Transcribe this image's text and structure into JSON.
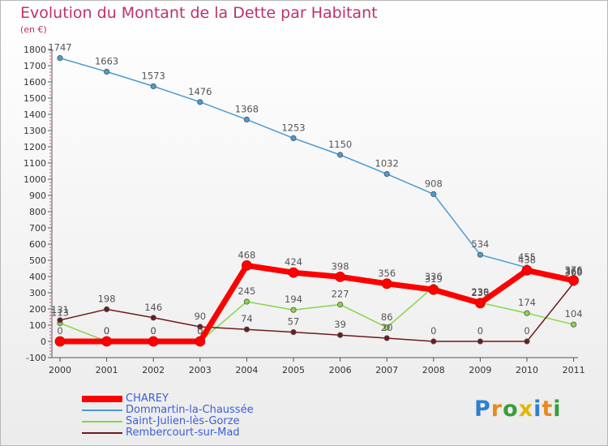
{
  "chart_data": {
    "type": "line",
    "title": "Evolution du Montant de la Dette par Habitant",
    "subtitle": "(en €)",
    "x": [
      "2000",
      "2001",
      "2002",
      "2003",
      "2004",
      "2005",
      "2006",
      "2007",
      "2008",
      "2009",
      "2010",
      "2011"
    ],
    "ylim": [
      -100,
      1800
    ],
    "yticks": [
      -100,
      0,
      100,
      200,
      300,
      400,
      500,
      600,
      700,
      800,
      900,
      1000,
      1100,
      1200,
      1300,
      1400,
      1500,
      1600,
      1700,
      1800
    ],
    "grid": false,
    "legend_position": "bottom-left",
    "series": [
      {
        "name": "CHAREY",
        "color": "#ff0000",
        "values": [
          0,
          0,
          0,
          0,
          468,
          424,
          398,
          356,
          319,
          236,
          438,
          376
        ],
        "labels": [
          "0",
          "0",
          "0",
          "0",
          "468",
          "424",
          "398",
          "356",
          "319",
          "236",
          "438",
          "376"
        ]
      },
      {
        "name": "Dommartin-la-Chaussée",
        "color": "#4a9ad4",
        "values": [
          1747,
          1663,
          1573,
          1476,
          1368,
          1253,
          1150,
          1032,
          908,
          534,
          455,
          368
        ],
        "labels": [
          "1747",
          "1663",
          "1573",
          "1476",
          "1368",
          "1253",
          "1150",
          "1032",
          "908",
          "534",
          "455",
          "368"
        ]
      },
      {
        "name": "Saint-Julien-lès-Gorze",
        "color": "#88d44a",
        "values": [
          113,
          0,
          0,
          0,
          245,
          194,
          227,
          86,
          336,
          239,
          174,
          104
        ],
        "labels": [
          "113",
          "0",
          "0",
          "0",
          "245",
          "194",
          "227",
          "86",
          "336",
          "239",
          "174",
          "104"
        ]
      },
      {
        "name": "Rembercourt-sur-Mad",
        "color": "#6d1b1b",
        "values": [
          131,
          198,
          146,
          90,
          74,
          57,
          39,
          20,
          0,
          0,
          0,
          360
        ],
        "labels": [
          "131",
          "198",
          "146",
          "90",
          "74",
          "57",
          "39",
          "20",
          "0",
          "0",
          "0",
          "360"
        ]
      }
    ]
  },
  "logo": {
    "letters": [
      "P",
      "r",
      "o",
      "x",
      "i",
      "t",
      "i"
    ],
    "colors": [
      "#2f7fd0",
      "#e88a1f",
      "#3a9c3a",
      "#e2b800",
      "#2f7fd0",
      "#e88a1f",
      "#3a9c3a"
    ]
  }
}
